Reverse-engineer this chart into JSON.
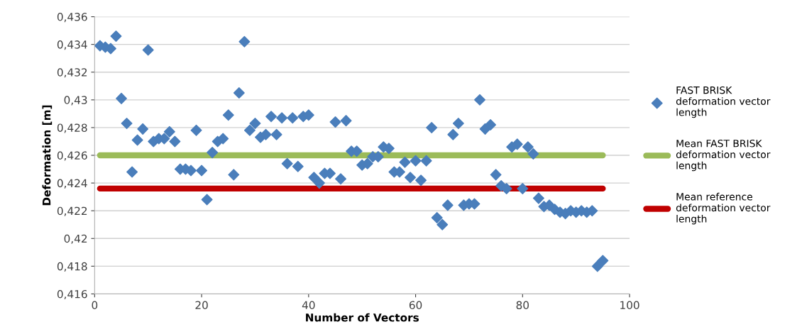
{
  "chart_data": {
    "type": "scatter",
    "xlabel": "Number of Vectors",
    "ylabel": "Deformation [m]",
    "xlim": [
      0,
      100
    ],
    "xticks": [
      0,
      20,
      40,
      60,
      80,
      100
    ],
    "ylim": [
      0.416,
      0.436
    ],
    "yticks": [
      {
        "value": 0.416,
        "label": "0,416"
      },
      {
        "value": 0.418,
        "label": "0,418"
      },
      {
        "value": 0.42,
        "label": "0,42"
      },
      {
        "value": 0.422,
        "label": "0,422"
      },
      {
        "value": 0.424,
        "label": "0,424"
      },
      {
        "value": 0.426,
        "label": "0,426"
      },
      {
        "value": 0.428,
        "label": "0,428"
      },
      {
        "value": 0.43,
        "label": "0,43"
      },
      {
        "value": 0.432,
        "label": "0,432"
      },
      {
        "value": 0.434,
        "label": "0,434"
      },
      {
        "value": 0.436,
        "label": "0,436"
      }
    ],
    "grid": "y",
    "legend": "right",
    "series": [
      {
        "name": "FAST BRISK deformation vector length",
        "marker": "diamond",
        "color": "#4a7ebb",
        "x": [
          1,
          2,
          3,
          4,
          5,
          6,
          7,
          8,
          9,
          10,
          11,
          12,
          13,
          14,
          15,
          16,
          17,
          18,
          19,
          20,
          21,
          22,
          23,
          24,
          25,
          26,
          27,
          28,
          29,
          30,
          31,
          32,
          33,
          34,
          35,
          36,
          37,
          38,
          39,
          40,
          41,
          42,
          43,
          44,
          45,
          46,
          47,
          48,
          49,
          50,
          51,
          52,
          53,
          54,
          55,
          56,
          57,
          58,
          59,
          60,
          61,
          62,
          63,
          64,
          65,
          66,
          67,
          68,
          69,
          70,
          71,
          72,
          73,
          74,
          75,
          76,
          77,
          78,
          79,
          80,
          81,
          82,
          83,
          84,
          85,
          86,
          87,
          88,
          89,
          90,
          91,
          92,
          93,
          94,
          95
        ],
        "values": [
          0.4339,
          0.4338,
          0.4337,
          0.4346,
          0.4301,
          0.4283,
          0.4248,
          0.4271,
          0.4279,
          0.4336,
          0.427,
          0.4272,
          0.4272,
          0.4277,
          0.427,
          0.425,
          0.425,
          0.4249,
          0.4278,
          0.4249,
          0.4228,
          0.4262,
          0.427,
          0.4272,
          0.4289,
          0.4246,
          0.4305,
          0.4342,
          0.4278,
          0.4283,
          0.4273,
          0.4275,
          0.4288,
          0.4275,
          0.4287,
          0.4254,
          0.4287,
          0.4252,
          0.4288,
          0.4289,
          0.4244,
          0.424,
          0.4247,
          0.4247,
          0.4284,
          0.4243,
          0.4285,
          0.4263,
          0.4263,
          0.4253,
          0.4254,
          0.4259,
          0.4259,
          0.4266,
          0.4265,
          0.4248,
          0.4248,
          0.4255,
          0.4244,
          0.4256,
          0.4242,
          0.4256,
          0.428,
          0.4215,
          0.421,
          0.4224,
          0.4275,
          0.4283,
          0.4224,
          0.4225,
          0.4225,
          0.43,
          0.4279,
          0.4282,
          0.4246,
          0.4238,
          0.4236,
          0.4266,
          0.4268,
          0.4236,
          0.4266,
          0.4261,
          0.4229,
          0.4223,
          0.4224,
          0.4221,
          0.4219,
          0.4218,
          0.422,
          0.4219,
          0.422,
          0.4219,
          0.422,
          0.418,
          0.4184
        ]
      },
      {
        "name": "Mean FAST BRISK deformation vector length",
        "type": "line",
        "marker": "none",
        "color": "#9bbb59",
        "x": [
          1,
          95
        ],
        "values": [
          0.426,
          0.426
        ]
      },
      {
        "name": "Mean reference deformation vector length",
        "type": "line",
        "marker": "none",
        "color": "#c00000",
        "x": [
          1,
          95
        ],
        "values": [
          0.4236,
          0.4236
        ]
      }
    ]
  }
}
